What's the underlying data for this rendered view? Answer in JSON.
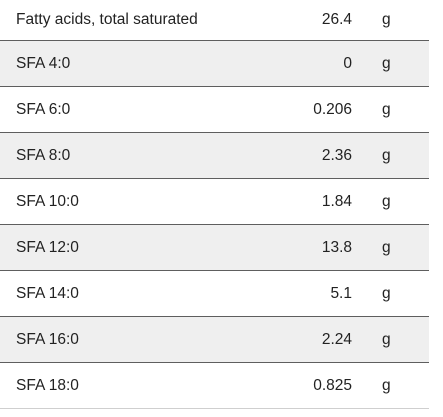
{
  "nutrients": [
    {
      "name": "Fatty acids, total saturated",
      "amount": "26.4",
      "unit": "g"
    },
    {
      "name": "SFA 4:0",
      "amount": "0",
      "unit": "g"
    },
    {
      "name": "SFA 6:0",
      "amount": "0.206",
      "unit": "g"
    },
    {
      "name": "SFA 8:0",
      "amount": "2.36",
      "unit": "g"
    },
    {
      "name": "SFA 10:0",
      "amount": "1.84",
      "unit": "g"
    },
    {
      "name": "SFA 12:0",
      "amount": "13.8",
      "unit": "g"
    },
    {
      "name": "SFA 14:0",
      "amount": "5.1",
      "unit": "g"
    },
    {
      "name": "SFA 16:0",
      "amount": "2.24",
      "unit": "g"
    },
    {
      "name": "SFA 18:0",
      "amount": "0.825",
      "unit": "g"
    }
  ]
}
